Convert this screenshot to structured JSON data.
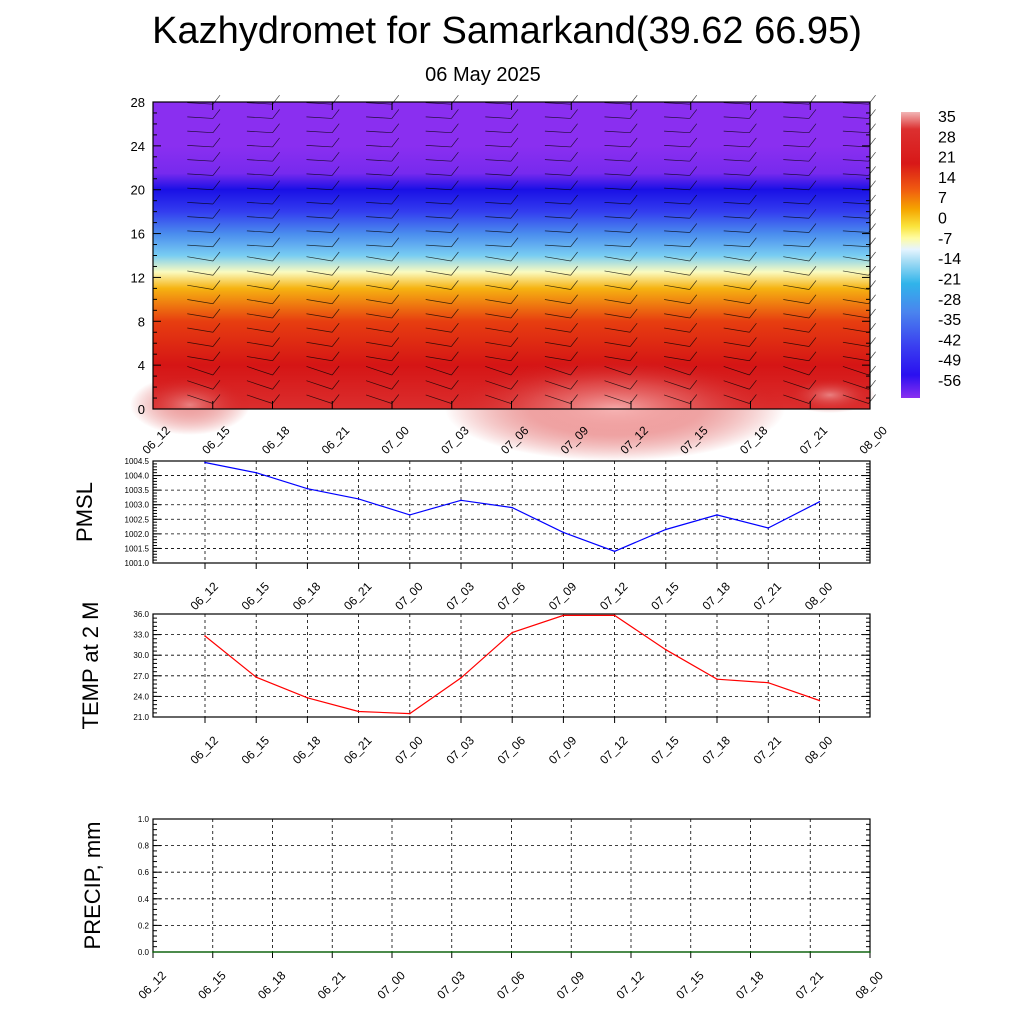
{
  "header": {
    "title": "Kazhydromet for Samarkand(39.62 66.95)",
    "date": "06 May 2025"
  },
  "time_labels": [
    "06_12",
    "06_15",
    "06_18",
    "06_21",
    "07_00",
    "07_03",
    "07_06",
    "07_09",
    "07_12",
    "07_15",
    "07_18",
    "07_21",
    "08_00"
  ],
  "colors": {
    "pmsl_line": "#0000ff",
    "temp_line": "#ff0000",
    "precip_line": "#006400",
    "grid": "#000000"
  },
  "chart_data": [
    {
      "type": "heatmap",
      "name": "temperature-wind cross section",
      "y_ticks": [
        "0",
        "4",
        "8",
        "12",
        "16",
        "20",
        "24",
        "28"
      ],
      "ylim": [
        0,
        28
      ],
      "colorbar_labels": [
        "35",
        "28",
        "21",
        "14",
        "7",
        "0",
        "-7",
        "-14",
        "-21",
        "-28",
        "-35",
        "-42",
        "-49",
        "-56"
      ],
      "colorbar_range": [
        -63,
        42
      ],
      "levels_temperature": [
        {
          "height": 0,
          "value": 30
        },
        {
          "height": 4,
          "value": 23
        },
        {
          "height": 8,
          "value": 16
        },
        {
          "height": 11,
          "value": 5
        },
        {
          "height": 12.5,
          "value": -6
        },
        {
          "height": 14,
          "value": -20
        },
        {
          "height": 16,
          "value": -32
        },
        {
          "height": 18,
          "value": -45
        },
        {
          "height": 20,
          "value": -57
        },
        {
          "height": 21.5,
          "value": -62
        },
        {
          "height": 24,
          "value": -63
        },
        {
          "height": 28,
          "value": -63
        }
      ]
    },
    {
      "type": "line",
      "ylabel": "PMSL",
      "y_ticks": [
        "1001.0",
        "1001.5",
        "1002.0",
        "1002.5",
        "1003.0",
        "1003.5",
        "1004.0",
        "1004.5"
      ],
      "ylim": [
        1001.0,
        1004.5
      ],
      "categories": [
        "06_12",
        "06_15",
        "06_18",
        "06_21",
        "07_00",
        "07_03",
        "07_06",
        "07_09",
        "07_12",
        "07_15",
        "07_18",
        "07_21",
        "08_00"
      ],
      "values": [
        1004.45,
        1004.1,
        1003.55,
        1003.2,
        1002.65,
        1003.15,
        1002.9,
        1002.05,
        1001.4,
        1002.15,
        1002.65,
        1002.2,
        1003.1
      ]
    },
    {
      "type": "line",
      "ylabel": "TEMP at 2 M",
      "y_ticks": [
        "21.0",
        "24.0",
        "27.0",
        "30.0",
        "33.0",
        "36.0"
      ],
      "ylim": [
        21.0,
        36.0
      ],
      "categories": [
        "06_12",
        "06_15",
        "06_18",
        "06_21",
        "07_00",
        "07_03",
        "07_06",
        "07_09",
        "07_12",
        "07_15",
        "07_18",
        "07_21",
        "08_00"
      ],
      "values": [
        32.8,
        26.8,
        23.8,
        21.8,
        21.5,
        26.7,
        33.3,
        35.8,
        35.8,
        30.8,
        26.5,
        26.0,
        23.4
      ]
    },
    {
      "type": "line",
      "ylabel": "PRECIP, mm",
      "y_ticks": [
        "0.0",
        "0.2",
        "0.4",
        "0.6",
        "0.8",
        "1.0"
      ],
      "ylim": [
        0.0,
        1.0
      ],
      "categories": [
        "06_12",
        "06_15",
        "06_18",
        "06_21",
        "07_00",
        "07_03",
        "07_06",
        "07_09",
        "07_12",
        "07_15",
        "07_18",
        "07_21",
        "08_00"
      ],
      "values": [
        0,
        0,
        0,
        0,
        0,
        0,
        0,
        0,
        0,
        0,
        0,
        0,
        0
      ]
    }
  ]
}
